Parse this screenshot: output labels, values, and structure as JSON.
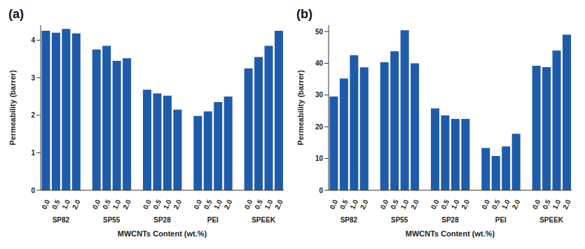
{
  "chart_data": [
    {
      "type": "bar",
      "title": "(a)",
      "x_label": "MWCNTs Content (wt.%)",
      "y_label": "Permeability (barrer)",
      "groups": [
        "SP82",
        "SP55",
        "SP28",
        "PEI",
        "SPEEK"
      ],
      "categories": [
        "0.0",
        "0.5",
        "1.0",
        "2.0",
        null,
        "0.0",
        "0.5",
        "1.0",
        "2.0",
        null,
        "0.0",
        "0.5",
        "1.0",
        "2.0",
        null,
        "0.0",
        "0.5",
        "1.0",
        "2.0",
        null,
        "0.0",
        "0.5",
        "1.0",
        "2.0"
      ],
      "values": [
        4.25,
        4.2,
        4.3,
        4.18,
        null,
        3.75,
        3.85,
        3.45,
        3.52,
        null,
        2.68,
        2.58,
        2.52,
        2.15,
        null,
        1.98,
        2.1,
        2.35,
        2.5,
        null,
        3.25,
        3.55,
        3.85,
        4.25
      ],
      "color": "#1f5bab",
      "ylim": [
        0,
        4.4
      ],
      "yticks": [
        0,
        1,
        2,
        3,
        4
      ],
      "grid": false
    },
    {
      "type": "bar",
      "title": "(b)",
      "x_label": "MWCNTs Content (wt.%)",
      "y_label": "Permeability (barrer)",
      "groups": [
        "SP82",
        "SP55",
        "SP28",
        "PEI",
        "SPEEK"
      ],
      "categories": [
        "0.0",
        "0.5",
        "1.0",
        "2.0",
        null,
        "0.0",
        "0.5",
        "1.0",
        "2.0",
        null,
        "0.0",
        "0.5",
        "1.0",
        "2.0",
        null,
        "0.0",
        "0.5",
        "1.0",
        "2.0",
        null,
        "0.0",
        "0.5",
        "1.0",
        "2.0"
      ],
      "values": [
        29.5,
        35.2,
        42.5,
        38.7,
        null,
        40.3,
        43.8,
        50.4,
        40.0,
        null,
        25.8,
        23.6,
        22.5,
        22.5,
        null,
        13.3,
        10.8,
        13.8,
        17.8,
        null,
        39.2,
        38.8,
        44.0,
        49.0
      ],
      "color": "#1f5bab",
      "ylim": [
        0,
        52
      ],
      "yticks": [
        0,
        10,
        20,
        30,
        40,
        50
      ],
      "grid": false
    }
  ]
}
